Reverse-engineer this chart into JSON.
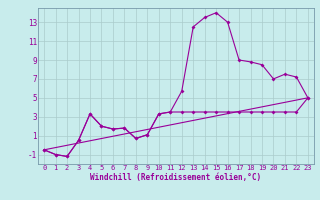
{
  "line1_x": [
    0,
    1,
    2,
    3,
    4,
    5,
    6,
    7,
    8,
    9,
    10,
    11,
    12,
    13,
    14,
    15,
    16,
    17,
    18,
    19,
    20,
    21,
    22,
    23
  ],
  "line1_y": [
    -0.5,
    -1.0,
    -1.2,
    0.5,
    3.3,
    2.0,
    1.7,
    1.8,
    0.7,
    1.1,
    3.3,
    3.5,
    5.7,
    12.5,
    13.5,
    14.0,
    13.0,
    9.0,
    8.8,
    8.5,
    7.0,
    7.5,
    7.2,
    5.0
  ],
  "line2_x": [
    0,
    1,
    2,
    3,
    4,
    5,
    6,
    7,
    8,
    9,
    10,
    11,
    12,
    13,
    14,
    15,
    16,
    17,
    18,
    19,
    20,
    21,
    22,
    23
  ],
  "line2_y": [
    -0.5,
    -1.0,
    -1.2,
    0.5,
    3.3,
    2.0,
    1.7,
    1.8,
    0.7,
    1.1,
    3.3,
    3.5,
    3.5,
    3.5,
    3.5,
    3.5,
    3.5,
    3.5,
    3.5,
    3.5,
    3.5,
    3.5,
    3.5,
    5.0
  ],
  "line3_x": [
    0,
    23
  ],
  "line3_y": [
    -0.5,
    5.0
  ],
  "bg_color": "#c8ecec",
  "grid_color": "#aacccc",
  "line_color": "#990099",
  "ylim": [
    -2.0,
    14.5
  ],
  "yticks": [
    -1,
    1,
    3,
    5,
    7,
    9,
    11,
    13
  ],
  "xlim": [
    -0.5,
    23.5
  ],
  "x_labels": [
    0,
    1,
    2,
    3,
    4,
    5,
    6,
    7,
    8,
    9,
    10,
    11,
    12,
    13,
    14,
    15,
    16,
    17,
    18,
    19,
    20,
    21,
    22,
    23
  ],
  "xlabel": "Windchill (Refroidissement éolien,°C)",
  "marker": "D",
  "markersize": 2.0,
  "linewidth": 0.8,
  "tick_fontsize": 5.0,
  "xlabel_fontsize": 5.5
}
